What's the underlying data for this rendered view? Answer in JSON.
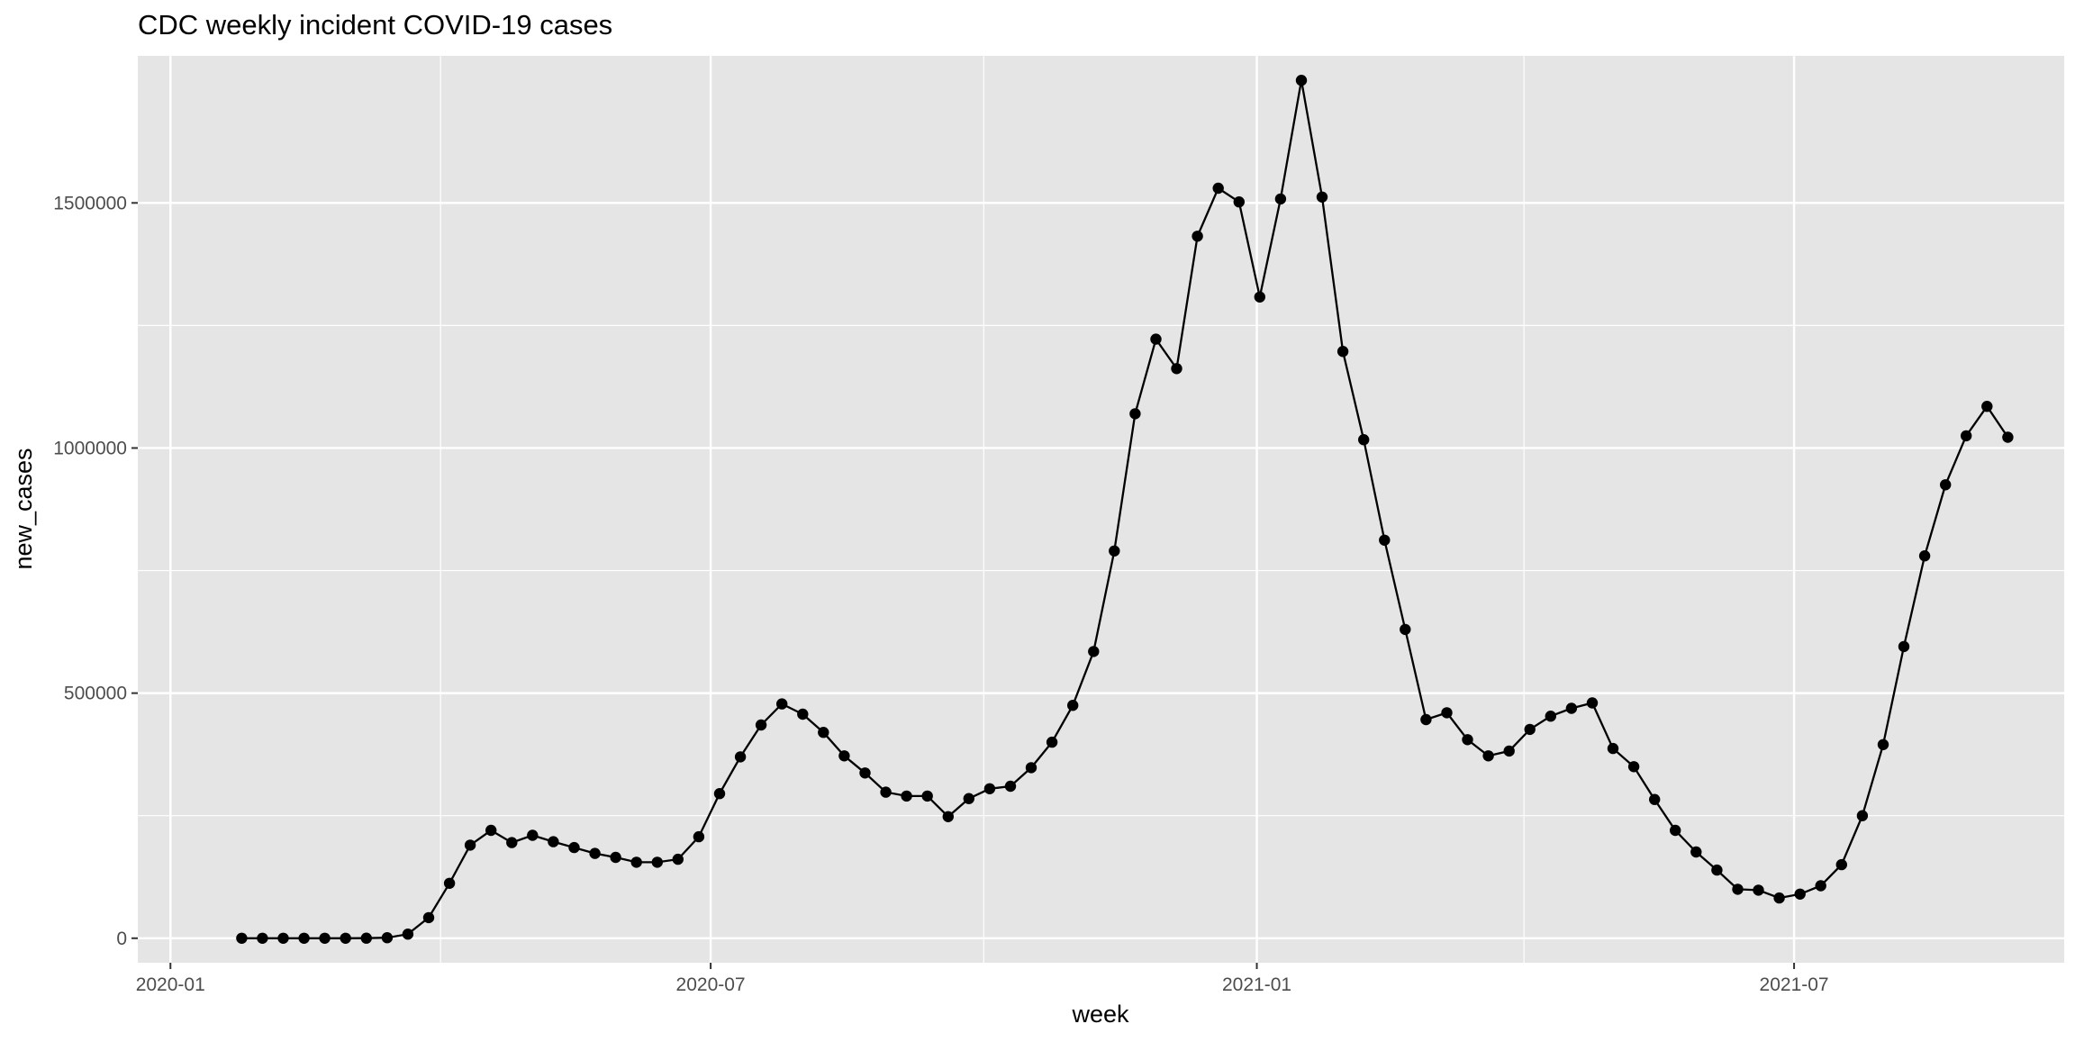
{
  "chart_data": {
    "type": "line",
    "title": "CDC weekly incident COVID-19 cases",
    "xlabel": "week",
    "ylabel": "new_cases",
    "x_axis_type": "date",
    "xlim": [
      "2019-12-21",
      "2021-09-30"
    ],
    "ylim": [
      -50000,
      1800000
    ],
    "grid": true,
    "legend": "none",
    "x_ticks": [
      {
        "value": "2020-01-01",
        "label": "2020-01"
      },
      {
        "value": "2020-07-01",
        "label": "2020-07"
      },
      {
        "value": "2021-01-01",
        "label": "2021-01"
      },
      {
        "value": "2021-07-01",
        "label": "2021-07"
      }
    ],
    "x_minor_ticks": [
      "2020-04-01",
      "2020-10-01",
      "2021-04-01"
    ],
    "y_ticks": [
      {
        "value": 0,
        "label": "0"
      },
      {
        "value": 500000,
        "label": "500000"
      },
      {
        "value": 1000000,
        "label": "1000000"
      },
      {
        "value": 1500000,
        "label": "1500000"
      }
    ],
    "y_minor_ticks": [
      250000,
      750000,
      1250000
    ],
    "colors": {
      "panel": "#e5e5e5",
      "grid": "#ffffff",
      "line": "#000000",
      "point": "#000000",
      "text": "#000000",
      "tick_text": "#4d4d4d"
    },
    "series": [
      {
        "x": [
          "2020-01-25",
          "2020-02-01",
          "2020-02-08",
          "2020-02-15",
          "2020-02-22",
          "2020-02-29",
          "2020-03-07",
          "2020-03-14",
          "2020-03-21",
          "2020-03-28",
          "2020-04-04",
          "2020-04-11",
          "2020-04-18",
          "2020-04-25",
          "2020-05-02",
          "2020-05-09",
          "2020-05-16",
          "2020-05-23",
          "2020-05-30",
          "2020-06-06",
          "2020-06-13",
          "2020-06-20",
          "2020-06-27",
          "2020-07-04",
          "2020-07-11",
          "2020-07-18",
          "2020-07-25",
          "2020-08-01",
          "2020-08-08",
          "2020-08-15",
          "2020-08-22",
          "2020-08-29",
          "2020-09-05",
          "2020-09-12",
          "2020-09-19",
          "2020-09-26",
          "2020-10-03",
          "2020-10-10",
          "2020-10-17",
          "2020-10-24",
          "2020-10-31",
          "2020-11-07",
          "2020-11-14",
          "2020-11-21",
          "2020-11-28",
          "2020-12-05",
          "2020-12-12",
          "2020-12-19",
          "2020-12-26",
          "2021-01-02",
          "2021-01-09",
          "2021-01-16",
          "2021-01-23",
          "2021-01-30",
          "2021-02-06",
          "2021-02-13",
          "2021-02-20",
          "2021-02-27",
          "2021-03-06",
          "2021-03-13",
          "2021-03-20",
          "2021-03-27",
          "2021-04-03",
          "2021-04-10",
          "2021-04-17",
          "2021-04-24",
          "2021-05-01",
          "2021-05-08",
          "2021-05-15",
          "2021-05-22",
          "2021-05-29",
          "2021-06-05",
          "2021-06-12",
          "2021-06-19",
          "2021-06-26",
          "2021-07-03",
          "2021-07-10",
          "2021-07-17",
          "2021-07-24",
          "2021-07-31",
          "2021-08-07",
          "2021-08-14",
          "2021-08-21",
          "2021-08-28",
          "2021-09-04",
          "2021-09-11"
        ],
        "y": [
          2,
          1,
          1,
          2,
          3,
          10,
          105,
          1000,
          8500,
          42000,
          112000,
          190000,
          220000,
          195000,
          210000,
          197000,
          185000,
          173000,
          165000,
          155000,
          155000,
          161000,
          207000,
          295000,
          370000,
          435000,
          478000,
          457000,
          420000,
          372000,
          337000,
          298000,
          290000,
          290000,
          248000,
          285000,
          305000,
          310000,
          348000,
          400000,
          475000,
          585000,
          790000,
          1070000,
          1222000,
          1162000,
          1432000,
          1530000,
          1502000,
          1308000,
          1508000,
          1750000,
          1512000,
          1197000,
          1017000,
          812000,
          630000,
          446000,
          460000,
          405000,
          372000,
          382000,
          426000,
          453000,
          469000,
          480000,
          387000,
          350000,
          283000,
          220000,
          176000,
          139000,
          100000,
          98000,
          82000,
          90000,
          107000,
          150000,
          250000,
          395000,
          595000,
          780000,
          925000,
          1025000,
          1085000,
          1022000
        ]
      }
    ]
  }
}
